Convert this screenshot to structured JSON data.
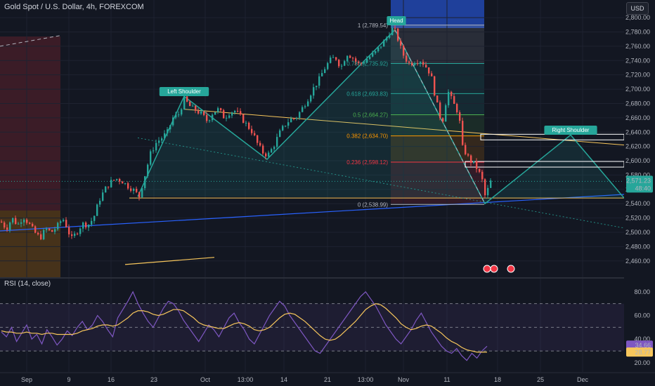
{
  "header": {
    "title": "Gold Spot / U.S. Dollar, 4h, FOREXCOM",
    "currency": "USD",
    "rsi_title": "RSI (14, close)"
  },
  "colors": {
    "background": "#131722",
    "bull": "#26a69a",
    "bear": "#ef5350",
    "pattern": "#26a69a",
    "trend_line": "#2962ff",
    "neckline": "#f7c65c",
    "rsi_line": "#7e57c2",
    "rsi_ma": "#f7c65c",
    "price_tag": "#26a69a"
  },
  "chart_data": [
    {
      "type": "candlestick",
      "title": "Gold Spot / U.S. Dollar, 4h, FOREXCOM",
      "ylim": [
        2450,
        2805
      ],
      "y_ticks": [
        "2,460.00",
        "2,480.00",
        "2,500.00",
        "2,520.00",
        "2,540.00",
        "2,560.00",
        "2,580.00",
        "2,600.00",
        "2,620.00",
        "2,640.00",
        "2,660.00",
        "2,680.00",
        "2,700.00",
        "2,720.00",
        "2,740.00",
        "2,760.00",
        "2,780.00",
        "2,800.00"
      ],
      "x_ticks": [
        "Sep",
        "9",
        "16",
        "23",
        "Oct",
        "13:00",
        "14",
        "21",
        "13:00",
        "Nov",
        "11",
        "18",
        "25",
        "Dec"
      ],
      "grid": true,
      "last_price": "2,571.23",
      "countdown": "48:40",
      "price_path": [
        [
          0,
          2515
        ],
        [
          8,
          2505
        ],
        [
          16,
          2520
        ],
        [
          24,
          2510
        ],
        [
          32,
          2522
        ],
        [
          40,
          2512
        ],
        [
          48,
          2500
        ],
        [
          56,
          2492
        ],
        [
          64,
          2505
        ],
        [
          72,
          2500
        ],
        [
          80,
          2508
        ],
        [
          88,
          2520
        ],
        [
          95,
          2505
        ],
        [
          100,
          2490
        ],
        [
          108,
          2500
        ],
        [
          116,
          2512
        ],
        [
          124,
          2510
        ],
        [
          132,
          2520
        ],
        [
          140,
          2545
        ],
        [
          148,
          2560
        ],
        [
          156,
          2570
        ],
        [
          164,
          2575
        ],
        [
          172,
          2572
        ],
        [
          180,
          2565
        ],
        [
          188,
          2560
        ],
        [
          197,
          2550
        ],
        [
          205,
          2580
        ],
        [
          213,
          2610
        ],
        [
          221,
          2625
        ],
        [
          229,
          2632
        ],
        [
          237,
          2640
        ],
        [
          245,
          2660
        ],
        [
          253,
          2665
        ],
        [
          261,
          2686
        ],
        [
          270,
          2675
        ],
        [
          278,
          2670
        ],
        [
          286,
          2665
        ],
        [
          294,
          2655
        ],
        [
          302,
          2668
        ],
        [
          310,
          2672
        ],
        [
          318,
          2660
        ],
        [
          326,
          2668
        ],
        [
          334,
          2670
        ],
        [
          342,
          2660
        ],
        [
          350,
          2650
        ],
        [
          358,
          2640
        ],
        [
          366,
          2622
        ],
        [
          374,
          2610
        ],
        [
          380,
          2608
        ],
        [
          388,
          2620
        ],
        [
          396,
          2638
        ],
        [
          404,
          2650
        ],
        [
          412,
          2658
        ],
        [
          420,
          2660
        ],
        [
          428,
          2672
        ],
        [
          436,
          2685
        ],
        [
          444,
          2700
        ],
        [
          452,
          2712
        ],
        [
          460,
          2728
        ],
        [
          468,
          2740
        ],
        [
          476,
          2745
        ],
        [
          484,
          2730
        ],
        [
          492,
          2750
        ],
        [
          500,
          2745
        ],
        [
          508,
          2735
        ],
        [
          516,
          2738
        ],
        [
          524,
          2745
        ],
        [
          532,
          2750
        ],
        [
          540,
          2760
        ],
        [
          548,
          2770
        ],
        [
          556,
          2785
        ],
        [
          562,
          2780
        ],
        [
          568,
          2760
        ],
        [
          574,
          2745
        ],
        [
          582,
          2735
        ],
        [
          590,
          2740
        ],
        [
          598,
          2740
        ],
        [
          606,
          2730
        ],
        [
          612,
          2720
        ],
        [
          618,
          2690
        ],
        [
          624,
          2665
        ],
        [
          628,
          2652
        ],
        [
          636,
          2698
        ],
        [
          644,
          2680
        ],
        [
          652,
          2665
        ],
        [
          656,
          2620
        ],
        [
          662,
          2610
        ],
        [
          668,
          2600
        ],
        [
          674,
          2595
        ],
        [
          680,
          2585
        ],
        [
          686,
          2570
        ],
        [
          690,
          2545
        ],
        [
          694,
          2565
        ],
        [
          697,
          2571
        ]
      ],
      "fib_levels": [
        {
          "ratio": "1",
          "value": 2789.54,
          "label": "1 (2,789.54)",
          "color": "#b2b5be"
        },
        {
          "ratio": "0.786",
          "value": 2735.92,
          "label": "0.786 (2,735.92)",
          "color": "#26a69a"
        },
        {
          "ratio": "0.618",
          "value": 2693.83,
          "label": "0.618 (2,693.83)",
          "color": "#26a69a"
        },
        {
          "ratio": "0.5",
          "value": 2664.27,
          "label": "0.5 (2,664.27)",
          "color": "#4caf50"
        },
        {
          "ratio": "0.382",
          "value": 2634.7,
          "label": "0.382 (2,634.70)",
          "color": "#ff9800"
        },
        {
          "ratio": "0.236",
          "value": 2598.12,
          "label": "0.236 (2,598.12)",
          "color": "#f23645"
        },
        {
          "ratio": "0",
          "value": 2538.99,
          "label": "0 (2,538.99)",
          "color": "#b2b5be"
        }
      ],
      "annotations": [
        "Head",
        "Left Shoulder",
        "Right Shoulder"
      ]
    },
    {
      "type": "line",
      "title": "RSI (14, close)",
      "ylim": [
        17,
        87
      ],
      "y_ticks": [
        "20.00",
        "40.00",
        "60.00",
        "80.00"
      ],
      "bands": [
        30,
        50,
        70
      ],
      "rsi_value": "34.66",
      "rsi_ma_value": "28.77",
      "series": [
        {
          "values": [
            46,
            42,
            50,
            38,
            45,
            52,
            40,
            44,
            36,
            48,
            42,
            35,
            40,
            47,
            43,
            50,
            55,
            48,
            52,
            60,
            55,
            48,
            42,
            58,
            65,
            72,
            80,
            70,
            62,
            55,
            50,
            58,
            66,
            72,
            70,
            64,
            56,
            50,
            44,
            38,
            45,
            52,
            48,
            42,
            50,
            58,
            62,
            54,
            48,
            40,
            36,
            44,
            52,
            60,
            66,
            72,
            68,
            60,
            54,
            48,
            42,
            36,
            30,
            28,
            34,
            40,
            46,
            52,
            58,
            64,
            70,
            76,
            80,
            74,
            68,
            60,
            52,
            46,
            40,
            36,
            42,
            48,
            56,
            62,
            54,
            46,
            40,
            34,
            30,
            28,
            32,
            26,
            22,
            28,
            24,
            30,
            34
          ]
        },
        {
          "values": [
            47,
            46,
            46,
            45,
            45,
            46,
            45,
            45,
            44,
            45,
            45,
            44,
            44,
            44,
            44,
            45,
            47,
            48,
            49,
            51,
            52,
            52,
            51,
            52,
            55,
            58,
            62,
            64,
            64,
            63,
            61,
            60,
            61,
            63,
            65,
            65,
            64,
            61,
            58,
            54,
            52,
            51,
            50,
            49,
            49,
            51,
            53,
            54,
            53,
            51,
            48,
            47,
            48,
            50,
            54,
            58,
            61,
            62,
            61,
            58,
            55,
            51,
            47,
            43,
            40,
            39,
            40,
            43,
            47,
            51,
            55,
            60,
            65,
            68,
            70,
            69,
            66,
            62,
            58,
            53,
            50,
            48,
            49,
            51,
            52,
            51,
            48,
            45,
            41,
            38,
            36,
            33,
            31,
            30,
            29,
            29,
            29
          ]
        }
      ]
    }
  ]
}
